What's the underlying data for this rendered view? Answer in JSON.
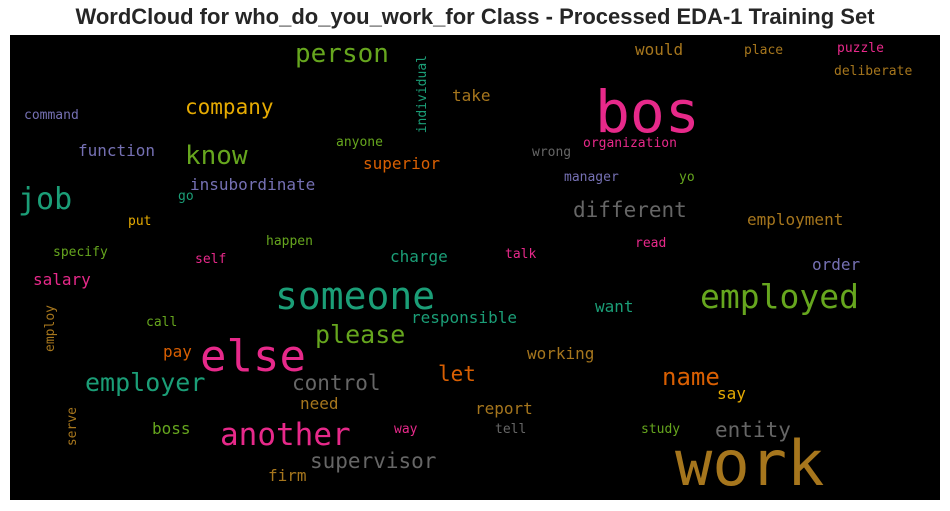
{
  "title": "WordCloud for who_do_you_work_for Class - Processed EDA-1 Training Set",
  "chart_data": {
    "type": "wordcloud",
    "background": "#000000",
    "words": [
      {
        "text": "bos",
        "color": "#e7298a"
      },
      {
        "text": "work",
        "color": "#a6761d"
      },
      {
        "text": "else",
        "color": "#e7298a"
      },
      {
        "text": "someone",
        "color": "#1b9e77"
      },
      {
        "text": "employed",
        "color": "#66a61e"
      },
      {
        "text": "another",
        "color": "#e7298a"
      },
      {
        "text": "job",
        "color": "#1b9e77"
      },
      {
        "text": "person",
        "color": "#66a61e"
      },
      {
        "text": "know",
        "color": "#66a61e"
      },
      {
        "text": "employer",
        "color": "#1b9e77"
      },
      {
        "text": "please",
        "color": "#66a61e"
      },
      {
        "text": "name",
        "color": "#d95f02"
      },
      {
        "text": "company",
        "color": "#e6ab02"
      },
      {
        "text": "different",
        "color": "#666666"
      },
      {
        "text": "control",
        "color": "#666666"
      },
      {
        "text": "entity",
        "color": "#666666"
      },
      {
        "text": "supervisor",
        "color": "#666666"
      },
      {
        "text": "let",
        "color": "#d95f02"
      },
      {
        "text": "insubordinate",
        "color": "#7570b3"
      },
      {
        "text": "function",
        "color": "#7570b3"
      },
      {
        "text": "take",
        "color": "#a6761d"
      },
      {
        "text": "would",
        "color": "#a6761d"
      },
      {
        "text": "superior",
        "color": "#d95f02"
      },
      {
        "text": "employment",
        "color": "#a6761d"
      },
      {
        "text": "charge",
        "color": "#1b9e77"
      },
      {
        "text": "responsible",
        "color": "#1b9e77"
      },
      {
        "text": "want",
        "color": "#1b9e77"
      },
      {
        "text": "salary",
        "color": "#e7298a"
      },
      {
        "text": "order",
        "color": "#7570b3"
      },
      {
        "text": "working",
        "color": "#a6761d"
      },
      {
        "text": "report",
        "color": "#a6761d"
      },
      {
        "text": "say",
        "color": "#e6ab02"
      },
      {
        "text": "boss",
        "color": "#66a61e"
      },
      {
        "text": "need",
        "color": "#a6761d"
      },
      {
        "text": "firm",
        "color": "#a6761d"
      },
      {
        "text": "pay",
        "color": "#d95f02"
      },
      {
        "text": "individual",
        "color": "#1b9e77"
      },
      {
        "text": "command",
        "color": "#7570b3"
      },
      {
        "text": "anyone",
        "color": "#66a61e"
      },
      {
        "text": "wrong",
        "color": "#666666"
      },
      {
        "text": "organization",
        "color": "#e7298a"
      },
      {
        "text": "place",
        "color": "#a6761d"
      },
      {
        "text": "puzzle",
        "color": "#e7298a"
      },
      {
        "text": "deliberate",
        "color": "#a6761d"
      },
      {
        "text": "manager",
        "color": "#7570b3"
      },
      {
        "text": "yo",
        "color": "#66a61e"
      },
      {
        "text": "go",
        "color": "#1b9e77"
      },
      {
        "text": "put",
        "color": "#e6ab02"
      },
      {
        "text": "specify",
        "color": "#66a61e"
      },
      {
        "text": "happen",
        "color": "#66a61e"
      },
      {
        "text": "self",
        "color": "#e7298a"
      },
      {
        "text": "talk",
        "color": "#e7298a"
      },
      {
        "text": "read",
        "color": "#e7298a"
      },
      {
        "text": "call",
        "color": "#66a61e"
      },
      {
        "text": "employ",
        "color": "#a6761d"
      },
      {
        "text": "serve",
        "color": "#a6761d"
      },
      {
        "text": "way",
        "color": "#e7298a"
      },
      {
        "text": "tell",
        "color": "#666666"
      },
      {
        "text": "study",
        "color": "#66a61e"
      }
    ]
  }
}
